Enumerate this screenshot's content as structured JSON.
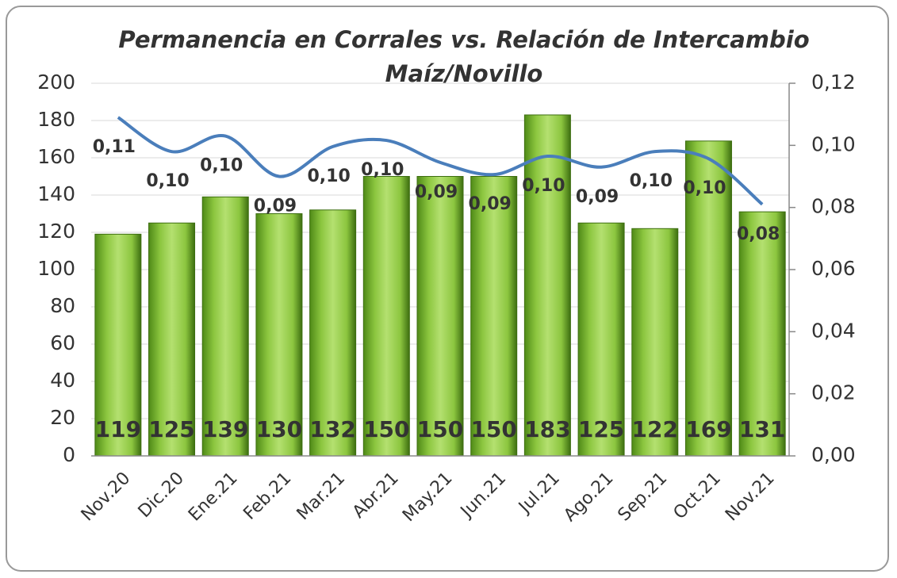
{
  "chart_data": {
    "type": "bar_line",
    "title": [
      "Permanencia en Corrales vs. Relación de Intercambio",
      "Maíz/Novillo"
    ],
    "categories": [
      "Nov.20",
      "Dic.20",
      "Ene.21",
      "Feb.21",
      "Mar.21",
      "Abr.21",
      "May.21",
      "Jun.21",
      "Jul.21",
      "Ago.21",
      "Sep.21",
      "Oct.21",
      "Nov.21"
    ],
    "series": [
      {
        "type": "bar",
        "color": "#8cc63f",
        "values": [
          119,
          125,
          139,
          130,
          132,
          150,
          150,
          150,
          183,
          125,
          122,
          169,
          131
        ]
      },
      {
        "type": "line",
        "axis": "y2",
        "color": "#4a7ebb",
        "values": [
          0.109,
          0.098,
          0.103,
          0.09,
          0.0996,
          0.1016,
          0.0945,
          0.0906,
          0.0965,
          0.093,
          0.098,
          0.0957,
          0.081
        ],
        "value_labels": [
          "0,11",
          "0,10",
          "0,10",
          "0,09",
          "0,10",
          "0,10",
          "0,09",
          "0,09",
          "0,10",
          "0,09",
          "0,10",
          "0,10",
          "0,08"
        ]
      }
    ],
    "ylim": [
      0,
      200
    ],
    "yticks": [
      0,
      20,
      40,
      60,
      80,
      100,
      120,
      140,
      160,
      180,
      200
    ],
    "y2lim": [
      0,
      0.12
    ],
    "y2ticks": [
      {
        "value": 0,
        "label": "0,00"
      },
      {
        "value": 0.02,
        "label": "0,02"
      },
      {
        "value": 0.04,
        "label": "0,04"
      },
      {
        "value": 0.06,
        "label": "0,06"
      },
      {
        "value": 0.08,
        "label": "0,08"
      },
      {
        "value": 0.1,
        "label": "0,10"
      },
      {
        "value": 0.12,
        "label": "0,12"
      }
    ],
    "grid": true
  }
}
